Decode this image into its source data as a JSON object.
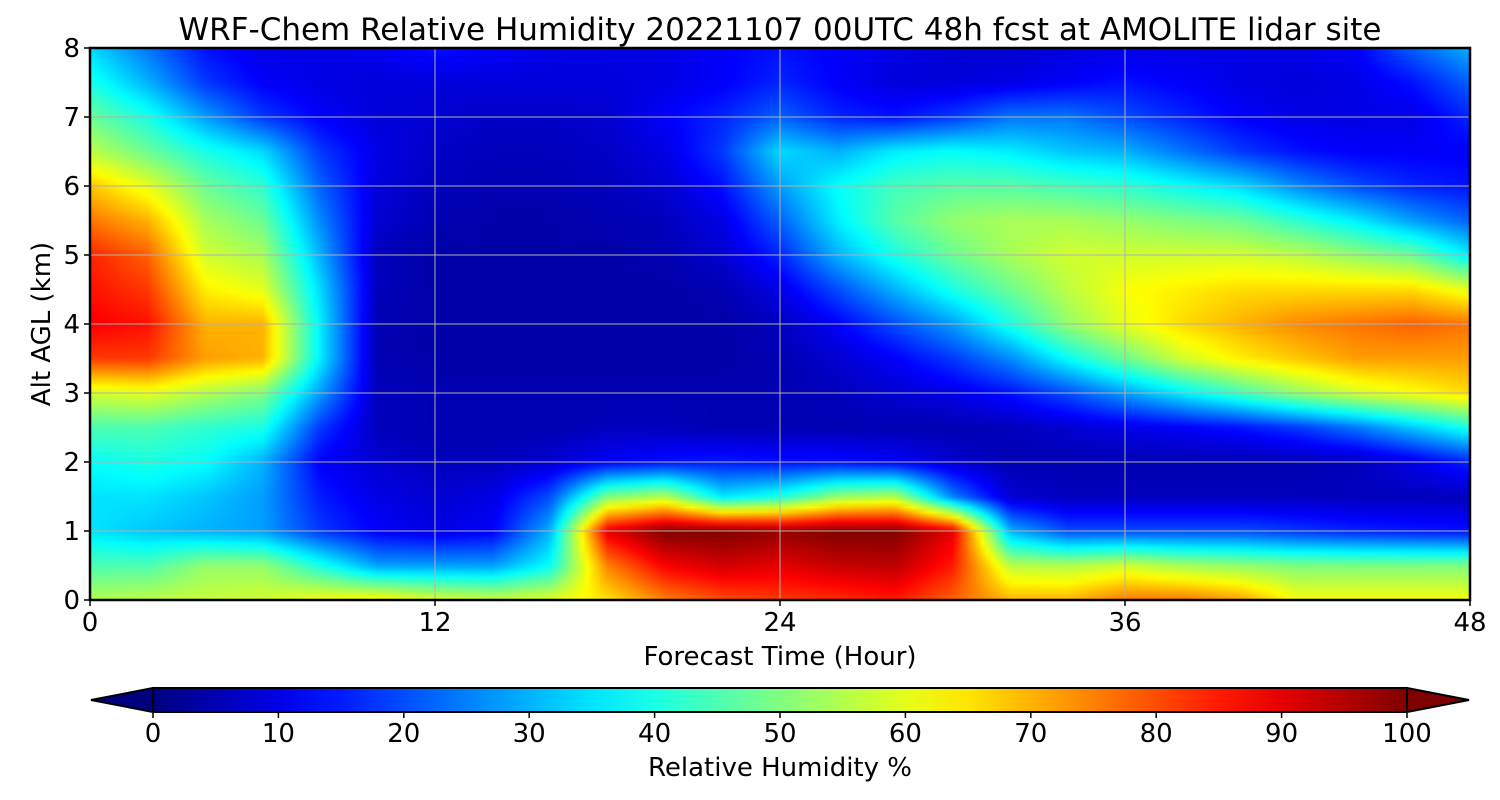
{
  "chart_data": {
    "type": "heatmap",
    "title": "WRF-Chem Relative Humidity 20221107 00UTC 48h fcst at AMOLITE lidar site",
    "xlabel": "Forecast Time (Hour)",
    "ylabel": "Alt AGL (km)",
    "xlim": [
      0,
      48
    ],
    "ylim": [
      0,
      8
    ],
    "xticks": [
      "0",
      "12",
      "24",
      "36",
      "48"
    ],
    "yticks": [
      "0",
      "1",
      "2",
      "3",
      "4",
      "5",
      "6",
      "7",
      "8"
    ],
    "grid": true,
    "colorbar": {
      "label": "Relative Humidity %",
      "range": [
        0,
        100
      ],
      "extend": "both",
      "colormap": "jet",
      "ticks": [
        "0",
        "10",
        "20",
        "30",
        "40",
        "50",
        "60",
        "70",
        "80",
        "90",
        "100"
      ]
    },
    "x": [
      0,
      2,
      4,
      6,
      8,
      10,
      12,
      14,
      16,
      18,
      20,
      22,
      24,
      26,
      28,
      30,
      32,
      34,
      36,
      38,
      40,
      42,
      44,
      46,
      48
    ],
    "y": [
      0,
      0.5,
      1,
      1.5,
      2,
      2.5,
      3,
      3.5,
      4,
      4.5,
      5,
      5.5,
      6,
      6.5,
      7,
      7.5,
      8
    ],
    "z": [
      [
        55,
        56,
        57,
        58,
        62,
        64,
        60,
        58,
        60,
        65,
        75,
        80,
        82,
        83,
        85,
        78,
        70,
        70,
        76,
        76,
        72,
        62,
        62,
        62,
        62
      ],
      [
        45,
        45,
        52,
        52,
        40,
        28,
        28,
        28,
        38,
        75,
        88,
        92,
        90,
        93,
        94,
        85,
        56,
        55,
        58,
        54,
        52,
        50,
        50,
        50,
        50
      ],
      [
        35,
        32,
        30,
        28,
        18,
        12,
        10,
        12,
        30,
        90,
        100,
        100,
        98,
        100,
        100,
        90,
        30,
        20,
        20,
        20,
        20,
        18,
        16,
        15,
        14
      ],
      [
        35,
        35,
        32,
        28,
        15,
        10,
        8,
        10,
        20,
        50,
        55,
        35,
        40,
        52,
        55,
        25,
        8,
        6,
        6,
        6,
        6,
        6,
        6,
        6,
        6
      ],
      [
        38,
        40,
        38,
        30,
        12,
        8,
        6,
        6,
        8,
        12,
        14,
        15,
        14,
        14,
        12,
        8,
        5,
        5,
        5,
        5,
        5,
        5,
        6,
        10,
        16
      ],
      [
        45,
        45,
        42,
        40,
        18,
        6,
        5,
        5,
        5,
        6,
        6,
        5,
        5,
        5,
        5,
        5,
        6,
        8,
        10,
        12,
        14,
        18,
        24,
        32,
        40
      ],
      [
        58,
        60,
        55,
        50,
        28,
        6,
        5,
        5,
        5,
        5,
        5,
        5,
        5,
        6,
        8,
        10,
        14,
        20,
        28,
        36,
        44,
        52,
        58,
        62,
        66
      ],
      [
        82,
        82,
        72,
        70,
        36,
        5,
        4,
        4,
        4,
        4,
        4,
        4,
        5,
        8,
        12,
        18,
        26,
        38,
        48,
        58,
        64,
        68,
        72,
        72,
        72
      ],
      [
        88,
        86,
        70,
        70,
        36,
        5,
        4,
        4,
        4,
        4,
        4,
        4,
        6,
        12,
        20,
        28,
        40,
        52,
        60,
        66,
        70,
        74,
        76,
        78,
        76
      ],
      [
        86,
        82,
        64,
        60,
        34,
        6,
        4,
        4,
        4,
        4,
        4,
        5,
        10,
        20,
        30,
        40,
        48,
        56,
        62,
        64,
        66,
        66,
        66,
        66,
        60
      ],
      [
        84,
        78,
        58,
        54,
        30,
        6,
        4,
        4,
        4,
        4,
        5,
        8,
        16,
        30,
        40,
        48,
        54,
        58,
        58,
        58,
        58,
        56,
        52,
        48,
        36
      ],
      [
        76,
        70,
        54,
        48,
        26,
        8,
        5,
        4,
        4,
        5,
        6,
        10,
        22,
        36,
        46,
        52,
        54,
        54,
        52,
        50,
        48,
        42,
        36,
        28,
        22
      ],
      [
        68,
        60,
        48,
        42,
        22,
        9,
        6,
        5,
        5,
        6,
        8,
        14,
        28,
        38,
        44,
        46,
        46,
        44,
        42,
        38,
        34,
        26,
        20,
        16,
        14
      ],
      [
        56,
        48,
        40,
        34,
        18,
        10,
        7,
        6,
        6,
        7,
        10,
        18,
        34,
        30,
        36,
        38,
        36,
        32,
        30,
        24,
        18,
        14,
        12,
        12,
        12
      ],
      [
        48,
        40,
        28,
        18,
        12,
        9,
        8,
        7,
        7,
        8,
        12,
        16,
        22,
        16,
        14,
        18,
        24,
        24,
        20,
        16,
        12,
        10,
        10,
        10,
        16
      ],
      [
        40,
        30,
        18,
        12,
        10,
        9,
        9,
        9,
        9,
        9,
        10,
        12,
        16,
        12,
        9,
        9,
        10,
        12,
        14,
        12,
        10,
        9,
        10,
        14,
        22
      ],
      [
        34,
        24,
        14,
        10,
        10,
        11,
        14,
        12,
        10,
        10,
        10,
        12,
        14,
        12,
        10,
        8,
        8,
        9,
        10,
        10,
        10,
        10,
        12,
        22,
        30
      ]
    ]
  }
}
